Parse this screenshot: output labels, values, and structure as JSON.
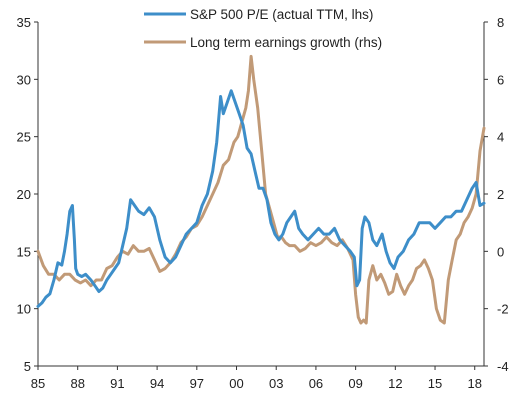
{
  "chart_data": {
    "type": "line",
    "grid": false,
    "legend_position": "top-center",
    "x_axis": {
      "ticks": [
        "85",
        "88",
        "91",
        "94",
        "97",
        "00",
        "03",
        "06",
        "09",
        "12",
        "15",
        "18"
      ],
      "tick_years": [
        1985,
        1988,
        1991,
        1994,
        1997,
        2000,
        2003,
        2006,
        2009,
        2012,
        2015,
        2018
      ],
      "range": [
        1985,
        2018.7
      ]
    },
    "y_left": {
      "ticks": [
        5,
        10,
        15,
        20,
        25,
        30,
        35
      ],
      "range": [
        5,
        35
      ]
    },
    "y_right": {
      "ticks": [
        -4,
        -2,
        0,
        2,
        4,
        6,
        8
      ],
      "range": [
        -4,
        8
      ]
    },
    "series": [
      {
        "name": "S&P 500 P/E (actual TTM, lhs)",
        "axis": "left",
        "color": "#3d8ec9",
        "x": [
          1985.0,
          1985.3,
          1985.6,
          1985.9,
          1986.2,
          1986.5,
          1986.8,
          1987.0,
          1987.2,
          1987.4,
          1987.6,
          1987.75,
          1987.85,
          1988.0,
          1988.3,
          1988.6,
          1989.0,
          1989.3,
          1989.6,
          1989.9,
          1990.2,
          1990.5,
          1990.8,
          1991.1,
          1991.4,
          1991.7,
          1992.0,
          1992.3,
          1992.6,
          1993.0,
          1993.4,
          1993.8,
          1994.2,
          1994.6,
          1995.0,
          1995.4,
          1995.8,
          1996.2,
          1996.6,
          1997.0,
          1997.4,
          1997.8,
          1998.2,
          1998.5,
          1998.8,
          1999.0,
          1999.3,
          1999.6,
          1999.9,
          2000.2,
          2000.5,
          2000.8,
          2001.1,
          2001.4,
          2001.7,
          2002.0,
          2002.3,
          2002.6,
          2002.9,
          2003.2,
          2003.5,
          2003.8,
          2004.1,
          2004.4,
          2004.7,
          2005.0,
          2005.4,
          2005.8,
          2006.2,
          2006.6,
          2007.0,
          2007.4,
          2007.8,
          2008.2,
          2008.6,
          2008.9,
          2009.1,
          2009.3,
          2009.5,
          2009.7,
          2010.0,
          2010.3,
          2010.6,
          2011.0,
          2011.3,
          2011.6,
          2011.9,
          2012.2,
          2012.6,
          2013.0,
          2013.4,
          2013.8,
          2014.2,
          2014.6,
          2015.0,
          2015.4,
          2015.8,
          2016.2,
          2016.6,
          2017.0,
          2017.4,
          2017.8,
          2018.1,
          2018.4,
          2018.7
        ],
        "y": [
          10.2,
          10.5,
          11.0,
          11.3,
          12.5,
          14.0,
          13.8,
          15.0,
          16.5,
          18.5,
          19.0,
          16.0,
          13.5,
          13.0,
          12.8,
          13.0,
          12.5,
          12.0,
          11.5,
          11.8,
          12.5,
          13.0,
          13.5,
          14.0,
          15.5,
          17.0,
          19.5,
          19.0,
          18.5,
          18.2,
          18.8,
          18.0,
          16.0,
          14.5,
          14.0,
          14.5,
          15.5,
          16.5,
          17.0,
          17.5,
          19.0,
          20.0,
          22.0,
          24.5,
          28.5,
          27.0,
          28.0,
          29.0,
          28.0,
          27.0,
          26.0,
          24.0,
          23.5,
          22.0,
          20.5,
          20.5,
          19.5,
          17.5,
          16.5,
          16.0,
          16.5,
          17.5,
          18.0,
          18.5,
          17.0,
          16.5,
          16.0,
          16.5,
          17.0,
          16.5,
          16.5,
          17.0,
          16.0,
          15.5,
          15.0,
          14.5,
          12.0,
          12.5,
          17.0,
          18.0,
          17.5,
          16.0,
          15.5,
          16.5,
          15.0,
          14.0,
          13.5,
          14.5,
          15.0,
          16.0,
          16.5,
          17.5,
          17.5,
          17.5,
          17.0,
          17.5,
          18.0,
          18.0,
          18.5,
          18.5,
          19.5,
          20.5,
          21.0,
          19.0,
          19.2
        ]
      },
      {
        "name": "Long term earnings growth (rhs)",
        "axis": "right",
        "color": "#c19a77",
        "x": [
          1985.0,
          1985.4,
          1985.8,
          1986.2,
          1986.6,
          1987.0,
          1987.4,
          1987.8,
          1988.2,
          1988.6,
          1989.0,
          1989.4,
          1989.8,
          1990.2,
          1990.6,
          1991.0,
          1991.4,
          1991.8,
          1992.2,
          1992.6,
          1993.0,
          1993.4,
          1993.8,
          1994.2,
          1994.6,
          1995.0,
          1995.4,
          1995.8,
          1996.2,
          1996.6,
          1997.0,
          1997.4,
          1997.8,
          1998.2,
          1998.6,
          1999.0,
          1999.4,
          1999.8,
          2000.1,
          2000.4,
          2000.7,
          2000.9,
          2001.1,
          2001.3,
          2001.6,
          2001.9,
          2002.2,
          2002.5,
          2002.8,
          2003.1,
          2003.4,
          2003.7,
          2004.0,
          2004.4,
          2004.8,
          2005.2,
          2005.6,
          2006.0,
          2006.4,
          2006.8,
          2007.2,
          2007.6,
          2008.0,
          2008.4,
          2008.8,
          2009.0,
          2009.2,
          2009.4,
          2009.6,
          2009.8,
          2010.0,
          2010.3,
          2010.6,
          2010.9,
          2011.2,
          2011.5,
          2011.8,
          2012.1,
          2012.4,
          2012.7,
          2013.0,
          2013.3,
          2013.6,
          2013.9,
          2014.2,
          2014.5,
          2014.8,
          2015.1,
          2015.4,
          2015.7,
          2016.0,
          2016.3,
          2016.6,
          2016.9,
          2017.2,
          2017.5,
          2017.8,
          2018.1,
          2018.4,
          2018.7
        ],
        "y": [
          0.0,
          -0.5,
          -0.8,
          -0.8,
          -1.0,
          -0.8,
          -0.8,
          -1.0,
          -1.1,
          -1.0,
          -1.2,
          -1.0,
          -1.0,
          -0.6,
          -0.5,
          -0.2,
          0.0,
          -0.1,
          0.2,
          0.0,
          0.0,
          0.1,
          -0.3,
          -0.7,
          -0.6,
          -0.4,
          -0.1,
          0.3,
          0.5,
          0.8,
          0.9,
          1.2,
          1.6,
          2.0,
          2.4,
          3.0,
          3.2,
          3.8,
          4.0,
          4.5,
          5.0,
          5.6,
          6.8,
          6.0,
          5.0,
          3.5,
          2.0,
          1.5,
          1.0,
          0.5,
          0.5,
          0.3,
          0.2,
          0.2,
          0.0,
          0.1,
          0.3,
          0.2,
          0.3,
          0.5,
          0.3,
          0.2,
          0.4,
          0.1,
          -0.3,
          -1.5,
          -2.3,
          -2.5,
          -2.4,
          -2.5,
          -1.0,
          -0.5,
          -1.0,
          -0.8,
          -1.1,
          -1.5,
          -1.4,
          -0.8,
          -1.2,
          -1.5,
          -1.2,
          -1.0,
          -0.6,
          -0.5,
          -0.3,
          -0.6,
          -1.0,
          -2.0,
          -2.4,
          -2.5,
          -1.0,
          -0.3,
          0.4,
          0.6,
          1.0,
          1.2,
          1.5,
          2.0,
          3.5,
          4.3
        ]
      }
    ]
  }
}
